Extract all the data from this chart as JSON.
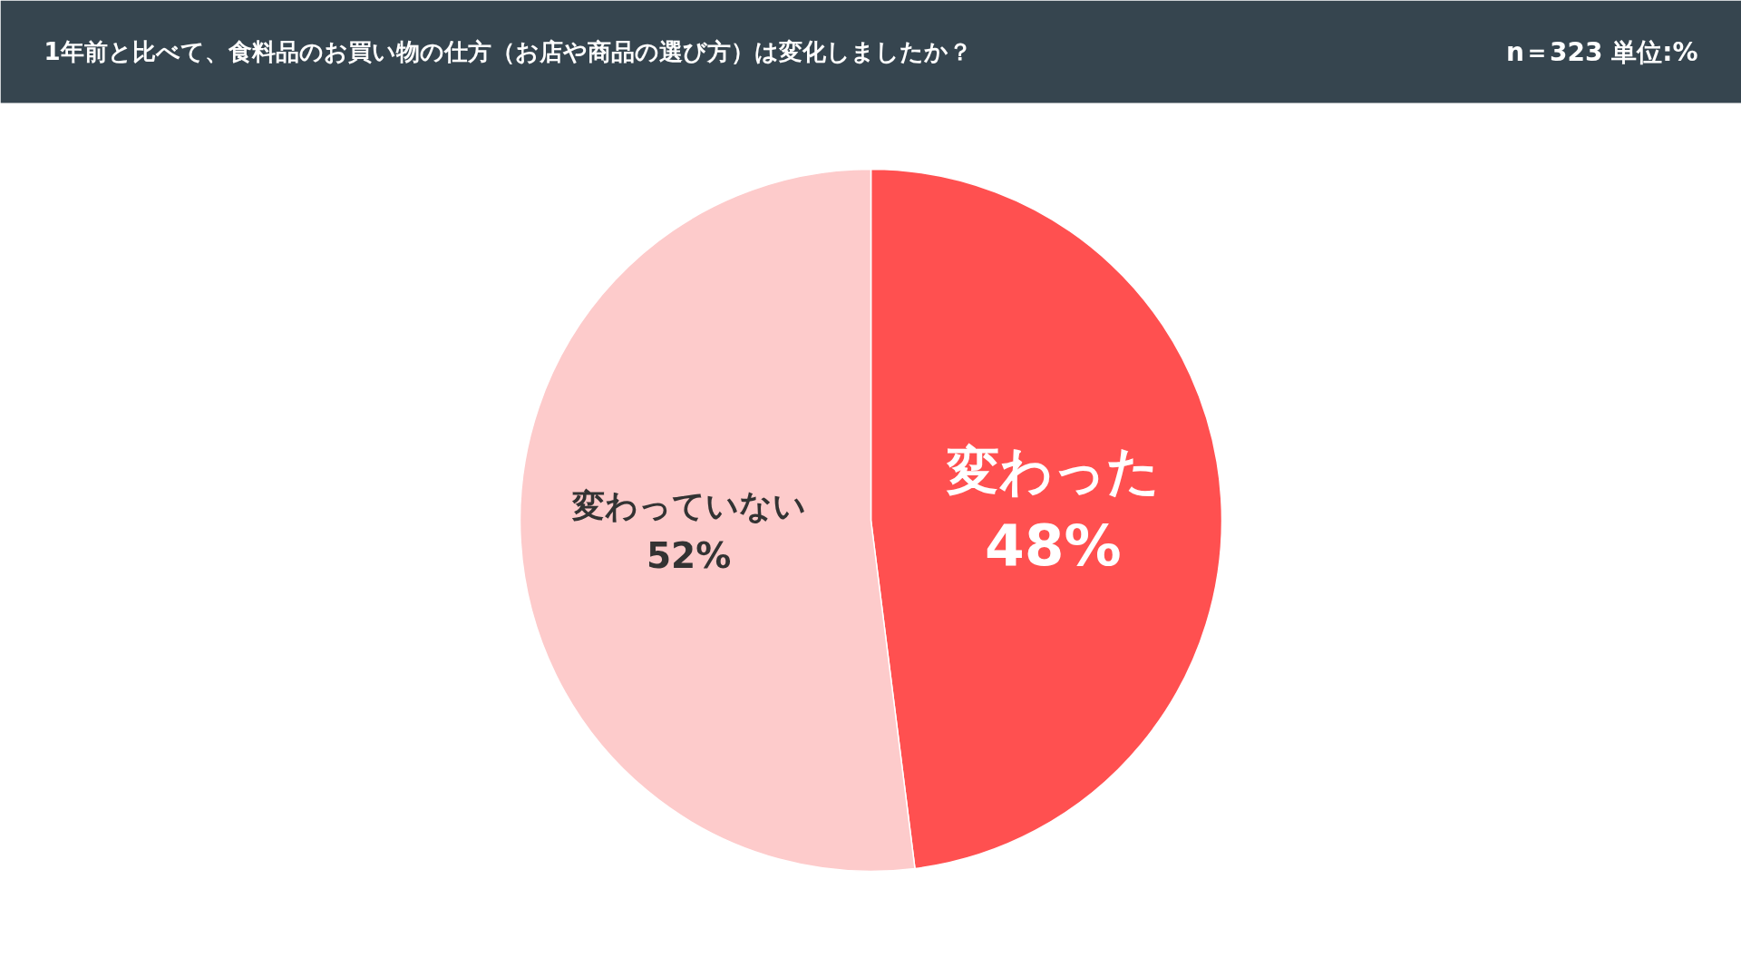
{
  "chart_data": {
    "type": "pie",
    "title": "1年前と比べて、食料品のお買い物の仕方（お店や商品の選び方）は変化しましたか？",
    "categories": [
      "変わった",
      "変わっていない"
    ],
    "values": [
      48,
      52
    ],
    "colors": [
      "#ff5050",
      "#fdcbcb"
    ],
    "value_labels": [
      "48%",
      "52%"
    ],
    "annotations": [
      "n＝323 単位:%"
    ]
  }
}
